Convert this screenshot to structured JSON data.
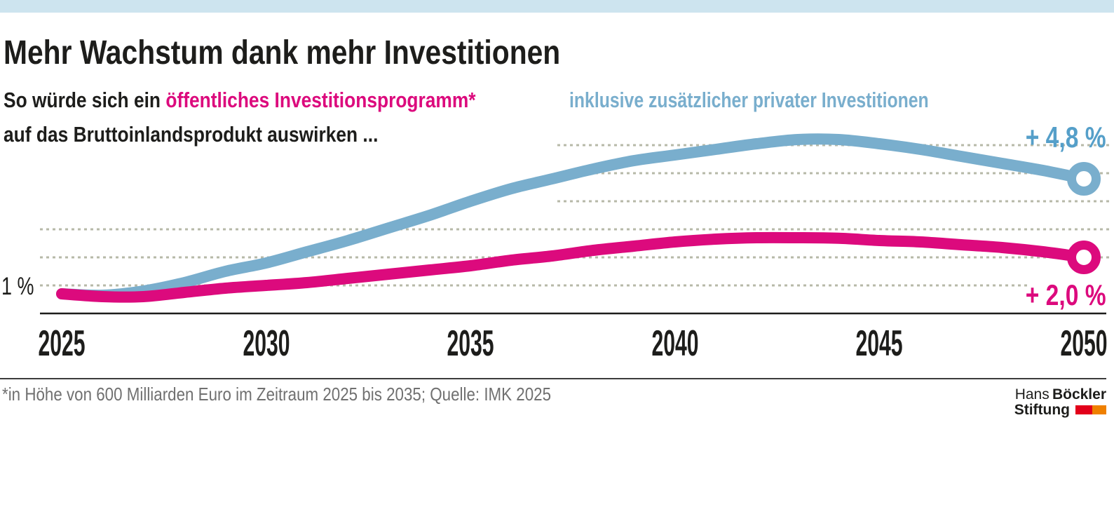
{
  "title": "Mehr Wachstum dank mehr Investitionen",
  "subtitle": {
    "prefix": "So würde sich ein ",
    "highlight": "öffentliches Investitionsprogramm*",
    "line2": "auf das Bruttoinlandsprodukt auswirken ..."
  },
  "blue_heading": "inklusive zusätzlicher privater Investitionen",
  "axis": {
    "y_ref_label": "1 %",
    "x_ticks": [
      "2025",
      "2030",
      "2035",
      "2040",
      "2045",
      "2050"
    ]
  },
  "annotations": {
    "blue_end": "+ 4,8 %",
    "pink_end": "+ 2,0 %"
  },
  "footer": {
    "note": "*in Höhe von 600 Milliarden Euro im Zeitraum 2025 bis 2035; Quelle: IMK 2025"
  },
  "logo": {
    "hans": "Hans",
    "boeckler": "Böckler",
    "stiftung": "Stiftung"
  },
  "colors": {
    "topbar": "#cde4ef",
    "blue": "#79aecd",
    "blue_label": "#559fc9",
    "pink": "#dc0a7d",
    "grid": "#b7b9a8",
    "axis": "#1d1d1b",
    "footer_text": "#707070",
    "logo_red": "#e2001a",
    "logo_orange": "#ef8000"
  },
  "chart_data": {
    "type": "line",
    "unit": "%",
    "title": "Mehr Wachstum dank mehr Investitionen",
    "subtitle": "So würde sich ein öffentliches Investitionsprogramm* auf das Bruttoinlandsprodukt auswirken ...",
    "x": [
      2025,
      2026,
      2027,
      2028,
      2029,
      2030,
      2031,
      2032,
      2033,
      2034,
      2035,
      2036,
      2037,
      2038,
      2039,
      2040,
      2041,
      2042,
      2043,
      2044,
      2045,
      2046,
      2047,
      2048,
      2049,
      2050
    ],
    "x_tick_years": [
      2025,
      2030,
      2035,
      2040,
      2045,
      2050
    ],
    "ylim": [
      0,
      6.5
    ],
    "y_reference": {
      "value": 1,
      "label": "1 %"
    },
    "grid": "dotted horizontal lines at 1% steps (1% to 6%)",
    "legend_position": "inline headings above lines",
    "series": [
      {
        "name": "öffentliches Investitionsprogramm",
        "color_key": "pink",
        "end_label": "+ 2,0 %",
        "values": [
          0.7,
          0.6,
          0.6,
          0.75,
          0.9,
          1.0,
          1.1,
          1.25,
          1.4,
          1.55,
          1.7,
          1.9,
          2.05,
          2.25,
          2.4,
          2.55,
          2.65,
          2.7,
          2.7,
          2.68,
          2.6,
          2.55,
          2.45,
          2.35,
          2.2,
          2.0
        ]
      },
      {
        "name": "inklusive zusätzlicher privater Investitionen",
        "color_key": "blue",
        "end_label": "+ 4,8 %",
        "values": [
          0.7,
          0.65,
          0.8,
          1.1,
          1.5,
          1.8,
          2.2,
          2.6,
          3.05,
          3.5,
          4.0,
          4.45,
          4.8,
          5.15,
          5.45,
          5.65,
          5.85,
          6.05,
          6.2,
          6.2,
          6.05,
          5.85,
          5.6,
          5.35,
          5.1,
          4.8
        ]
      }
    ]
  }
}
